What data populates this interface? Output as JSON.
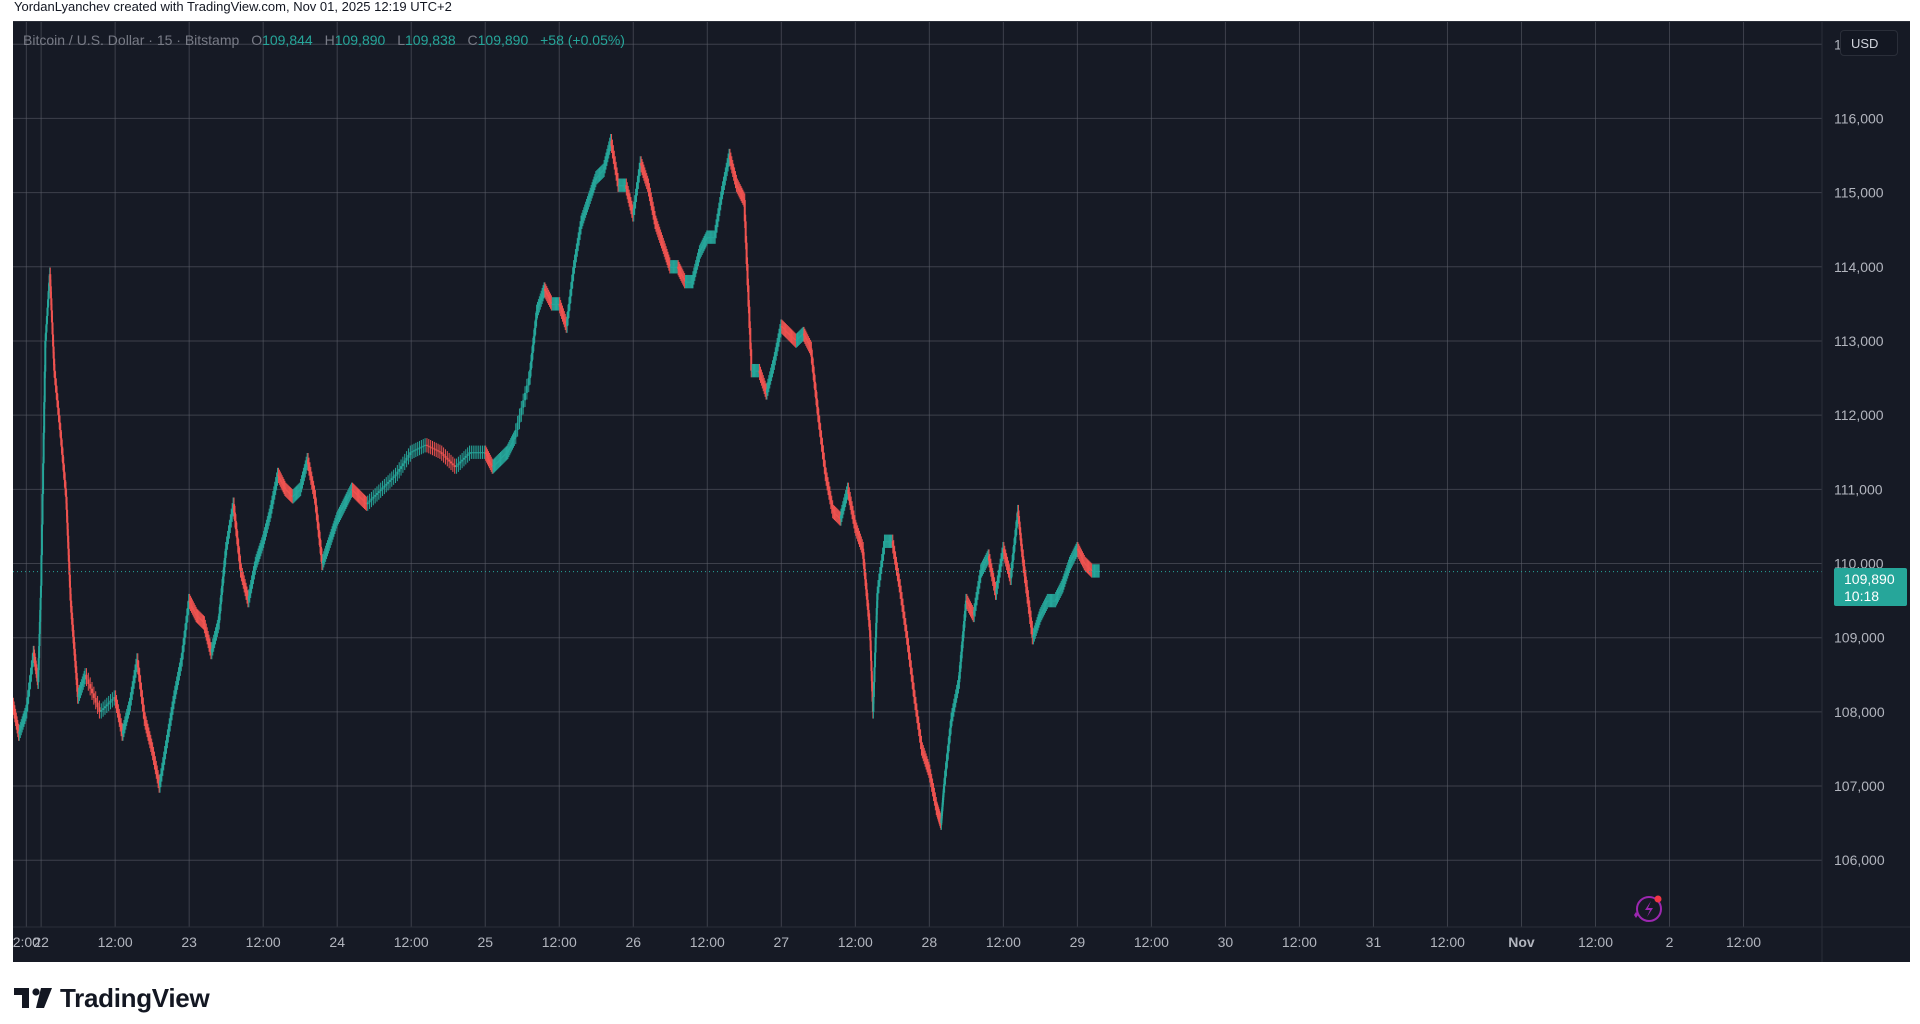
{
  "attribution": "YordanLyanchev created with TradingView.com, Nov 01, 2025 12:19 UTC+2",
  "legend": {
    "symbol": "Bitcoin / U.S. Dollar · 15 · Bitstamp",
    "open_label": "O",
    "open": "109,844",
    "high_label": "H",
    "high": "109,890",
    "low_label": "L",
    "low": "109,838",
    "close_label": "C",
    "close": "109,890",
    "change": "+58 (+0.05%)"
  },
  "currency_button": "USD",
  "last_price": {
    "value": "109,890",
    "countdown": "10:18"
  },
  "brand": "TradingView",
  "colors": {
    "up": "#26a69a",
    "down": "#ef5350",
    "background": "#161a25",
    "grid": "#5d606b",
    "price_line": "#26a69a"
  },
  "icons": {
    "assistant": "sparkle-bolt-icon"
  },
  "chart_data": {
    "type": "candlestick",
    "title": "Bitcoin / U.S. Dollar · 15 · Bitstamp",
    "interval": "15",
    "exchange": "Bitstamp",
    "grid": true,
    "y_axis": {
      "position": "right",
      "range": [
        105100,
        117300
      ],
      "ticks": [
        106000,
        107000,
        108000,
        109000,
        110000,
        111000,
        112000,
        113000,
        114000,
        115000,
        116000,
        117000
      ],
      "tick_labels": [
        "106,000",
        "107,000",
        "108,000",
        "109,000",
        "110,000",
        "111,000",
        "112,000",
        "113,000",
        "114,000",
        "115,000",
        "116,000",
        "117,000"
      ]
    },
    "x_axis": {
      "range": [
        -0.19,
        12.03
      ],
      "ticks": [
        -0.1,
        0.0,
        0.5,
        1.0,
        1.5,
        2.0,
        2.5,
        3.0,
        3.5,
        4.0,
        4.5,
        5.0,
        5.5,
        6.0,
        6.5,
        7.0,
        7.5,
        8.0,
        8.5,
        9.0,
        9.5,
        10.0,
        10.5,
        11.0,
        11.5
      ],
      "tick_labels": [
        "2:00",
        "22",
        "12:00",
        "23",
        "12:00",
        "24",
        "12:00",
        "25",
        "12:00",
        "26",
        "12:00",
        "27",
        "12:00",
        "28",
        "12:00",
        "29",
        "12:00",
        "30",
        "12:00",
        "31",
        "12:00",
        "Nov",
        "12:00",
        "2",
        "12:00"
      ],
      "bold_labels": [
        "Nov"
      ]
    },
    "series_path": [
      [
        -0.19,
        108100
      ],
      [
        -0.15,
        107700
      ],
      [
        -0.1,
        108000
      ],
      [
        -0.05,
        108800
      ],
      [
        -0.02,
        108400
      ],
      [
        0.0,
        109700
      ],
      [
        0.03,
        113000
      ],
      [
        0.06,
        113900
      ],
      [
        0.09,
        112600
      ],
      [
        0.13,
        111800
      ],
      [
        0.17,
        110900
      ],
      [
        0.2,
        109500
      ],
      [
        0.25,
        108200
      ],
      [
        0.3,
        108500
      ],
      [
        0.4,
        108000
      ],
      [
        0.5,
        108200
      ],
      [
        0.55,
        107700
      ],
      [
        0.6,
        108100
      ],
      [
        0.65,
        108700
      ],
      [
        0.7,
        107900
      ],
      [
        0.75,
        107500
      ],
      [
        0.8,
        107000
      ],
      [
        0.85,
        107600
      ],
      [
        0.9,
        108200
      ],
      [
        0.95,
        108700
      ],
      [
        1.0,
        109500
      ],
      [
        1.05,
        109300
      ],
      [
        1.1,
        109200
      ],
      [
        1.15,
        108800
      ],
      [
        1.2,
        109200
      ],
      [
        1.25,
        110200
      ],
      [
        1.3,
        110800
      ],
      [
        1.35,
        109900
      ],
      [
        1.4,
        109500
      ],
      [
        1.45,
        110000
      ],
      [
        1.5,
        110300
      ],
      [
        1.55,
        110700
      ],
      [
        1.6,
        111200
      ],
      [
        1.65,
        111000
      ],
      [
        1.7,
        110900
      ],
      [
        1.75,
        111000
      ],
      [
        1.8,
        111400
      ],
      [
        1.85,
        110900
      ],
      [
        1.9,
        110000
      ],
      [
        1.95,
        110300
      ],
      [
        2.0,
        110600
      ],
      [
        2.05,
        110800
      ],
      [
        2.1,
        111000
      ],
      [
        2.15,
        110900
      ],
      [
        2.2,
        110800
      ],
      [
        2.3,
        111000
      ],
      [
        2.4,
        111200
      ],
      [
        2.5,
        111500
      ],
      [
        2.6,
        111600
      ],
      [
        2.7,
        111500
      ],
      [
        2.8,
        111300
      ],
      [
        2.9,
        111500
      ],
      [
        3.0,
        111500
      ],
      [
        3.05,
        111300
      ],
      [
        3.1,
        111400
      ],
      [
        3.15,
        111500
      ],
      [
        3.2,
        111700
      ],
      [
        3.3,
        112500
      ],
      [
        3.35,
        113400
      ],
      [
        3.4,
        113700
      ],
      [
        3.45,
        113500
      ],
      [
        3.5,
        113500
      ],
      [
        3.55,
        113200
      ],
      [
        3.6,
        114000
      ],
      [
        3.65,
        114600
      ],
      [
        3.7,
        114900
      ],
      [
        3.75,
        115200
      ],
      [
        3.8,
        115300
      ],
      [
        3.85,
        115700
      ],
      [
        3.9,
        115100
      ],
      [
        3.95,
        115100
      ],
      [
        4.0,
        114700
      ],
      [
        4.05,
        115400
      ],
      [
        4.1,
        115100
      ],
      [
        4.15,
        114600
      ],
      [
        4.2,
        114300
      ],
      [
        4.25,
        114000
      ],
      [
        4.3,
        114000
      ],
      [
        4.35,
        113800
      ],
      [
        4.4,
        113800
      ],
      [
        4.45,
        114200
      ],
      [
        4.5,
        114400
      ],
      [
        4.55,
        114400
      ],
      [
        4.6,
        115000
      ],
      [
        4.65,
        115500
      ],
      [
        4.7,
        115100
      ],
      [
        4.75,
        114900
      ],
      [
        4.8,
        112600
      ],
      [
        4.85,
        112600
      ],
      [
        4.9,
        112300
      ],
      [
        4.95,
        112700
      ],
      [
        5.0,
        113200
      ],
      [
        5.05,
        113100
      ],
      [
        5.1,
        113000
      ],
      [
        5.15,
        113100
      ],
      [
        5.2,
        112900
      ],
      [
        5.25,
        112000
      ],
      [
        5.3,
        111200
      ],
      [
        5.35,
        110700
      ],
      [
        5.4,
        110600
      ],
      [
        5.45,
        111000
      ],
      [
        5.5,
        110500
      ],
      [
        5.55,
        110200
      ],
      [
        5.6,
        109100
      ],
      [
        5.62,
        108000
      ],
      [
        5.65,
        109600
      ],
      [
        5.7,
        110300
      ],
      [
        5.75,
        110300
      ],
      [
        5.8,
        109700
      ],
      [
        5.85,
        109000
      ],
      [
        5.9,
        108200
      ],
      [
        5.95,
        107500
      ],
      [
        6.0,
        107200
      ],
      [
        6.05,
        106700
      ],
      [
        6.08,
        106500
      ],
      [
        6.1,
        107000
      ],
      [
        6.15,
        107900
      ],
      [
        6.2,
        108400
      ],
      [
        6.25,
        109500
      ],
      [
        6.3,
        109300
      ],
      [
        6.35,
        109900
      ],
      [
        6.4,
        110100
      ],
      [
        6.45,
        109600
      ],
      [
        6.5,
        110200
      ],
      [
        6.55,
        109800
      ],
      [
        6.6,
        110700
      ],
      [
        6.63,
        110100
      ],
      [
        6.7,
        109000
      ],
      [
        6.75,
        109300
      ],
      [
        6.8,
        109500
      ],
      [
        6.85,
        109500
      ],
      [
        6.9,
        109700
      ],
      [
        6.95,
        110000
      ],
      [
        7.0,
        110200
      ],
      [
        7.05,
        110000
      ],
      [
        7.1,
        109900
      ],
      [
        7.15,
        109900
      ]
    ],
    "price_line": 109890,
    "last_price": 109890,
    "ohlc": {
      "open": 109844,
      "high": 109890,
      "low": 109838,
      "close": 109890
    },
    "change": 58,
    "change_percent": 0.05,
    "currency": "USD"
  }
}
